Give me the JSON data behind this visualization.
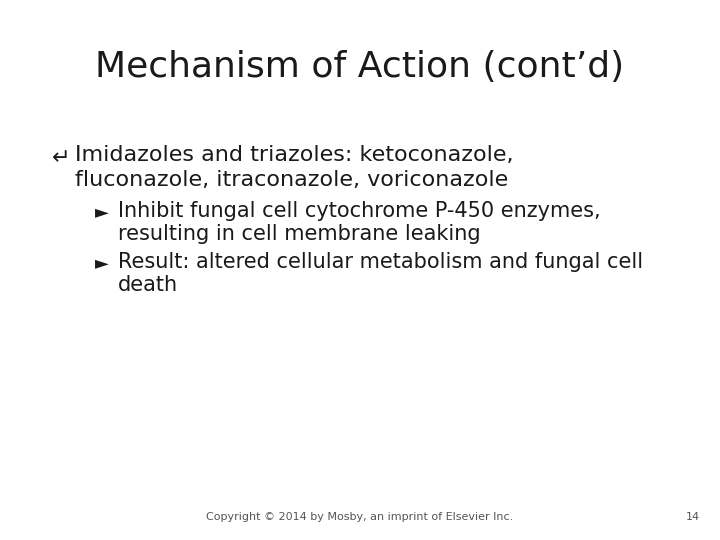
{
  "title": "Mechanism of Action (cont’d)",
  "background_color": "#ffffff",
  "title_fontsize": 26,
  "bullet_symbol": "↵",
  "bullet_text_line1": "Imidazoles and triazoles: ketoconazole,",
  "bullet_text_line2": "fluconazole, itraconazole, voriconazole",
  "sub_bullet_symbol": "►",
  "sub_bullet_1_line1": "Inhibit fungal cell cytochrome P-450 enzymes,",
  "sub_bullet_1_line2": "resulting in cell membrane leaking",
  "sub_bullet_2_line1": "Result: altered cellular metabolism and fungal cell",
  "sub_bullet_2_line2": "death",
  "footer_text": "Copyright © 2014 by Mosby, an imprint of Elsevier Inc.",
  "footer_page": "14",
  "text_color": "#1a1a1a",
  "footer_color": "#555555",
  "main_bullet_fontsize": 16,
  "sub_bullet_fontsize": 15,
  "footer_fontsize": 8
}
